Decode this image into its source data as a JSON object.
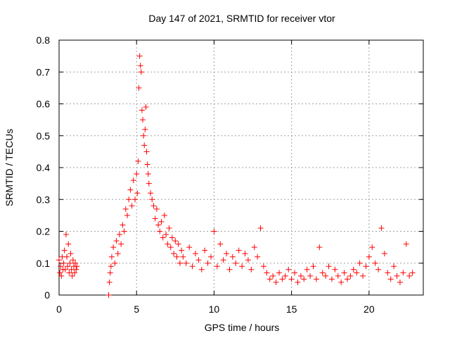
{
  "chart_data": {
    "type": "scatter",
    "title": "Day 147 of 2021, SRMTID for receiver vtor",
    "xlabel": "GPS time / hours",
    "ylabel": "SRMTID / TECUs",
    "xlim": [
      0,
      23.5
    ],
    "ylim": [
      0,
      0.8
    ],
    "xticks": [
      0,
      5,
      10,
      15,
      20
    ],
    "yticks": [
      0,
      0.1,
      0.2,
      0.3,
      0.4,
      0.5,
      0.6,
      0.7,
      0.8
    ],
    "xtick_labels": [
      "0",
      "5",
      "10",
      "15",
      "20"
    ],
    "ytick_labels": [
      "0",
      "0.1",
      "0.2",
      "0.3",
      "0.4",
      "0.5",
      "0.6",
      "0.7",
      "0.8"
    ],
    "grid": true,
    "marker": "+",
    "series": [
      {
        "name": "SRMTID",
        "color": "#ff0000",
        "x": [
          0.0,
          0.05,
          0.1,
          0.15,
          0.2,
          0.25,
          0.3,
          0.35,
          0.4,
          0.45,
          0.5,
          0.55,
          0.6,
          0.65,
          0.7,
          0.75,
          0.8,
          0.85,
          0.9,
          0.95,
          1.0,
          1.05,
          1.1,
          1.15,
          3.2,
          3.25,
          3.3,
          3.35,
          3.4,
          3.5,
          3.6,
          3.7,
          3.8,
          3.9,
          4.0,
          4.1,
          4.2,
          4.3,
          4.4,
          4.5,
          4.6,
          4.7,
          4.8,
          4.9,
          5.0,
          5.05,
          5.1,
          5.15,
          5.2,
          5.25,
          5.3,
          5.35,
          5.4,
          5.45,
          5.5,
          5.55,
          5.6,
          5.65,
          5.7,
          5.75,
          5.8,
          5.9,
          6.0,
          6.1,
          6.2,
          6.3,
          6.4,
          6.5,
          6.6,
          6.7,
          6.8,
          6.9,
          7.0,
          7.1,
          7.2,
          7.3,
          7.4,
          7.5,
          7.6,
          7.7,
          7.8,
          7.9,
          8.0,
          8.2,
          8.4,
          8.6,
          8.8,
          9.0,
          9.2,
          9.4,
          9.6,
          9.8,
          10.0,
          10.2,
          10.4,
          10.6,
          10.8,
          11.0,
          11.2,
          11.4,
          11.6,
          11.8,
          12.0,
          12.2,
          12.4,
          12.6,
          12.8,
          13.0,
          13.2,
          13.4,
          13.6,
          13.8,
          14.0,
          14.2,
          14.4,
          14.6,
          14.8,
          15.0,
          15.2,
          15.4,
          15.6,
          15.8,
          16.0,
          16.2,
          16.4,
          16.6,
          16.8,
          17.0,
          17.2,
          17.4,
          17.6,
          17.8,
          18.0,
          18.2,
          18.4,
          18.6,
          18.8,
          19.0,
          19.2,
          19.4,
          19.6,
          19.8,
          20.0,
          20.2,
          20.4,
          20.6,
          20.8,
          21.0,
          21.2,
          21.4,
          21.6,
          21.8,
          22.0,
          22.2,
          22.4,
          22.6,
          22.8
        ],
        "y": [
          0.11,
          0.07,
          0.09,
          0.06,
          0.12,
          0.08,
          0.1,
          0.14,
          0.08,
          0.19,
          0.12,
          0.09,
          0.16,
          0.07,
          0.1,
          0.13,
          0.08,
          0.06,
          0.11,
          0.09,
          0.07,
          0.1,
          0.08,
          0.09,
          0.0,
          0.04,
          0.07,
          0.09,
          0.12,
          0.15,
          0.1,
          0.17,
          0.13,
          0.19,
          0.16,
          0.22,
          0.2,
          0.27,
          0.25,
          0.3,
          0.33,
          0.28,
          0.36,
          0.3,
          0.38,
          0.32,
          0.42,
          0.65,
          0.75,
          0.72,
          0.7,
          0.58,
          0.55,
          0.5,
          0.47,
          0.52,
          0.59,
          0.45,
          0.41,
          0.38,
          0.35,
          0.32,
          0.3,
          0.28,
          0.24,
          0.27,
          0.22,
          0.2,
          0.23,
          0.18,
          0.25,
          0.19,
          0.16,
          0.21,
          0.15,
          0.18,
          0.13,
          0.17,
          0.12,
          0.16,
          0.1,
          0.14,
          0.12,
          0.1,
          0.15,
          0.09,
          0.13,
          0.11,
          0.08,
          0.14,
          0.1,
          0.12,
          0.2,
          0.09,
          0.16,
          0.11,
          0.13,
          0.08,
          0.12,
          0.1,
          0.14,
          0.09,
          0.13,
          0.11,
          0.08,
          0.15,
          0.12,
          0.21,
          0.09,
          0.07,
          0.05,
          0.06,
          0.04,
          0.07,
          0.05,
          0.06,
          0.08,
          0.05,
          0.07,
          0.04,
          0.06,
          0.05,
          0.08,
          0.06,
          0.09,
          0.05,
          0.15,
          0.07,
          0.06,
          0.09,
          0.05,
          0.08,
          0.06,
          0.04,
          0.07,
          0.05,
          0.06,
          0.08,
          0.07,
          0.1,
          0.06,
          0.09,
          0.12,
          0.15,
          0.1,
          0.08,
          0.21,
          0.13,
          0.07,
          0.05,
          0.09,
          0.06,
          0.04,
          0.07,
          0.16,
          0.06,
          0.07
        ]
      }
    ]
  }
}
